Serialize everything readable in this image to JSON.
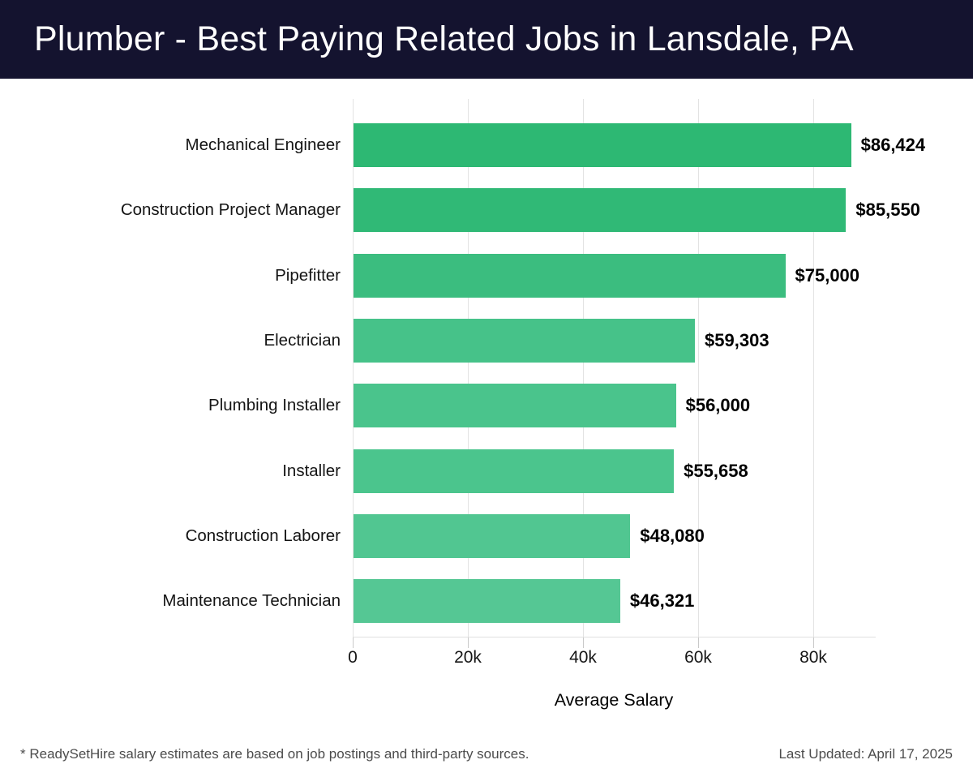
{
  "header": {
    "title": "Plumber - Best Paying Related Jobs in Lansdale, PA",
    "background_color": "#14132f",
    "text_color": "#ffffff"
  },
  "chart_data": {
    "type": "bar",
    "orientation": "horizontal",
    "categories": [
      "Mechanical Engineer",
      "Construction Project Manager",
      "Pipefitter",
      "Electrician",
      "Plumbing Installer",
      "Installer",
      "Construction Laborer",
      "Maintenance Technician"
    ],
    "values": [
      86424,
      85550,
      75000,
      59303,
      56000,
      55658,
      48080,
      46321
    ],
    "value_labels": [
      "$86,424",
      "$85,550",
      "$75,000",
      "$59,303",
      "$56,000",
      "$55,658",
      "$48,080",
      "$46,321"
    ],
    "bar_colors": [
      "#2db873",
      "#30b976",
      "#3bbd7f",
      "#46c289",
      "#4ac48c",
      "#4bc58d",
      "#51c691",
      "#55c794"
    ],
    "title": "Plumber - Best Paying Related Jobs in Lansdale, PA",
    "xlabel": "Average Salary",
    "ylabel": "",
    "xlim": [
      0,
      90845
    ],
    "xticks": [
      0,
      20000,
      40000,
      60000,
      80000
    ],
    "xtick_labels": [
      "0",
      "20k",
      "40k",
      "60k",
      "80k"
    ],
    "grid": "vertical-only",
    "legend": "none",
    "gridline_color": "#e3e3e3"
  },
  "footer": {
    "note": "* ReadySetHire salary estimates are based on job postings and third-party sources.",
    "last_updated": "Last Updated: April 17, 2025"
  }
}
